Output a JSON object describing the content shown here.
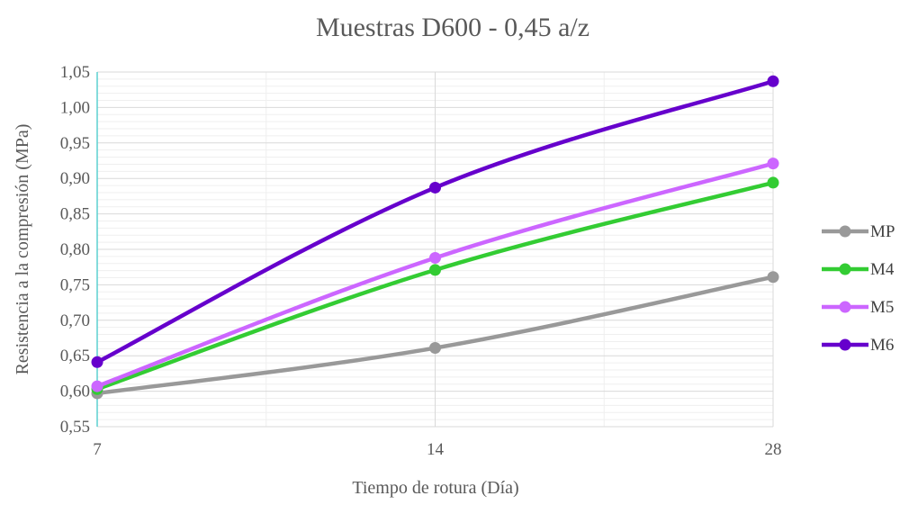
{
  "chart_data": {
    "type": "line",
    "title": "Muestras D600 - 0,45 a/z",
    "xlabel": "Tiempo de rotura (Día)",
    "ylabel": "Resistencia a la compresión (MPa)",
    "categories": [
      "7",
      "14",
      "28"
    ],
    "ylim": [
      0.55,
      1.05
    ],
    "yticks": [
      "0,55",
      "0,60",
      "0,65",
      "0,70",
      "0,75",
      "0,80",
      "0,85",
      "0,90",
      "0,95",
      "1,00",
      "1,05"
    ],
    "grid": true,
    "legend": "right",
    "series": [
      {
        "name": "MP",
        "color": "#999999",
        "values": [
          0.597,
          0.661,
          0.761
        ]
      },
      {
        "name": "M4",
        "color": "#33cc33",
        "values": [
          0.603,
          0.771,
          0.894
        ]
      },
      {
        "name": "M5",
        "color": "#cc66ff",
        "values": [
          0.607,
          0.788,
          0.921
        ]
      },
      {
        "name": "M6",
        "color": "#6600cc",
        "values": [
          0.641,
          0.887,
          1.037
        ]
      }
    ]
  }
}
